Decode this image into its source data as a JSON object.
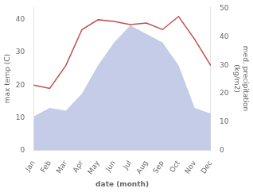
{
  "chart_data": {
    "type": "line",
    "xlabel": "date (month)",
    "ylabel": "max temp (C)",
    "y2label": "med. precipitation\n(kg/m2)",
    "categories": [
      "Jan",
      "Feb",
      "Mar",
      "Apr",
      "May",
      "Jun",
      "Jul",
      "Aug",
      "Sep",
      "Oct",
      "Nov",
      "Dec"
    ],
    "series": [
      {
        "type": "line",
        "color": "#c0504d",
        "values": [
          20,
          19,
          26,
          37,
          40,
          39.5,
          38.5,
          39,
          37,
          41,
          34,
          26
        ]
      },
      {
        "type": "area",
        "color": "#c5cce8",
        "axis": "y2",
        "values": [
          12,
          15,
          14,
          20,
          30,
          38,
          44,
          41,
          38,
          30,
          15,
          13
        ]
      }
    ],
    "ylim": [
      0,
      44
    ],
    "yticks": [
      0,
      10,
      20,
      30,
      40
    ],
    "y2lim": [
      0,
      50.6
    ],
    "y2ticks": [
      0,
      10,
      20,
      30,
      40,
      50
    ],
    "grid": false
  }
}
